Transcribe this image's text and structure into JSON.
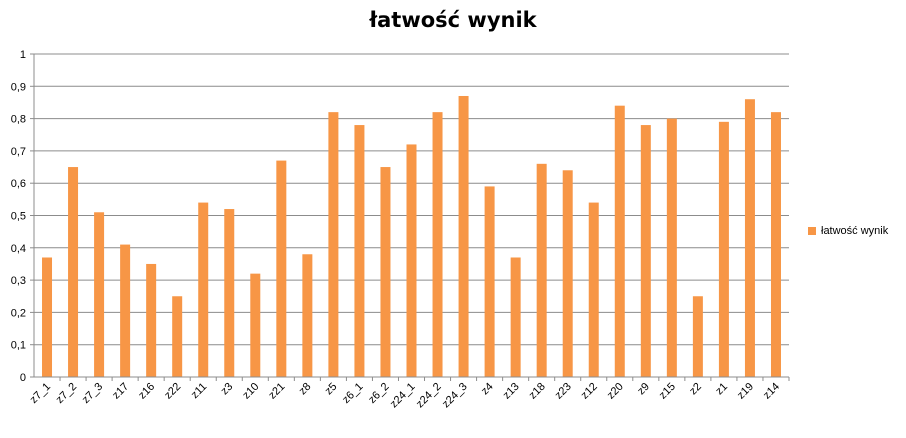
{
  "chart_data": {
    "type": "bar",
    "title": "łatwość wynik",
    "xlabel": "",
    "ylabel": "",
    "ylim": [
      0,
      1
    ],
    "yticks": [
      "0",
      "0,1",
      "0,2",
      "0,3",
      "0,4",
      "0,5",
      "0,6",
      "0,7",
      "0,8",
      "0,9",
      "1"
    ],
    "grid": true,
    "legend_position": "right",
    "categories": [
      "z7_1",
      "z7_2",
      "z7_3",
      "z17",
      "z16",
      "z22",
      "z11",
      "z3",
      "z10",
      "z21",
      "z8",
      "z5",
      "z6_1",
      "z6_2",
      "z24_1",
      "z24_2",
      "z24_3",
      "z4",
      "z13",
      "z18",
      "z23",
      "z12",
      "z20",
      "z9",
      "z15",
      "z2",
      "z1",
      "z19",
      "z14"
    ],
    "series": [
      {
        "name": "łatwość wynik",
        "color": "#f79646",
        "values": [
          0.37,
          0.65,
          0.51,
          0.41,
          0.35,
          0.25,
          0.54,
          0.52,
          0.32,
          0.67,
          0.38,
          0.82,
          0.78,
          0.65,
          0.72,
          0.82,
          0.87,
          0.59,
          0.37,
          0.66,
          0.64,
          0.54,
          0.84,
          0.78,
          0.8,
          0.25,
          0.79,
          0.86,
          0.82
        ]
      }
    ]
  }
}
